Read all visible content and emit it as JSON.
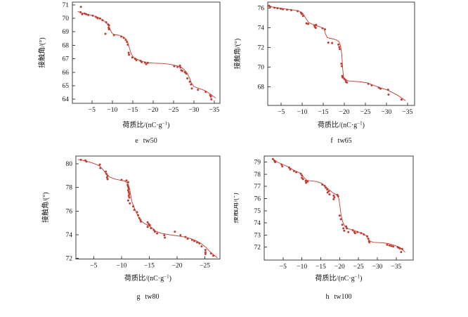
{
  "figure": {
    "ylabel": "接触角/(°)",
    "xlabel": "荷质比/(nC·g⁻¹)",
    "colors": {
      "accent": "#c23b30",
      "frame": "#3f3f3f",
      "text": "#141414"
    }
  },
  "chart_data": [
    {
      "type": "scatter",
      "caption": "e tw50",
      "xlabel": "荷质比/(nC·g⁻¹)",
      "ylabel": "接触角/(°)",
      "xlim": [
        -0.2,
        -36.4
      ],
      "ylim": [
        63.7,
        71.2
      ],
      "x_ticks": [
        -5,
        -10,
        -15,
        -20,
        -25,
        -30,
        -35
      ],
      "y_ticks": [
        64,
        65,
        66,
        67,
        68,
        69,
        70,
        71
      ],
      "points": [
        [
          -2.3,
          70.85
        ],
        [
          -2.2,
          70.45
        ],
        [
          -2.6,
          70.3
        ],
        [
          -3.2,
          70.35
        ],
        [
          -3.6,
          70.3
        ],
        [
          -4.1,
          70.25
        ],
        [
          -5.2,
          70.2
        ],
        [
          -6.0,
          70.1
        ],
        [
          -6.4,
          70.0
        ],
        [
          -7.0,
          69.98
        ],
        [
          -7.6,
          69.85
        ],
        [
          -8.5,
          69.7
        ],
        [
          -9.0,
          69.55
        ],
        [
          -9.2,
          69.48
        ],
        [
          -9.1,
          69.3
        ],
        [
          -9.2,
          69.18
        ],
        [
          -8.3,
          68.85
        ],
        [
          -10.4,
          68.75
        ],
        [
          -12.2,
          68.65
        ],
        [
          -12.8,
          68.55
        ],
        [
          -13.3,
          68.4
        ],
        [
          -13.6,
          68.25
        ],
        [
          -13.8,
          68.05
        ],
        [
          -14.0,
          67.45
        ],
        [
          -14.1,
          67.3
        ],
        [
          -14.9,
          67.1
        ],
        [
          -15.6,
          67.0
        ],
        [
          -15.9,
          66.9
        ],
        [
          -16.9,
          66.85
        ],
        [
          -17.2,
          66.75
        ],
        [
          -18.0,
          66.72
        ],
        [
          -18.3,
          66.6
        ],
        [
          -18.7,
          66.7
        ],
        [
          -25.2,
          66.45
        ],
        [
          -26.0,
          66.4
        ],
        [
          -26.6,
          66.5
        ],
        [
          -26.7,
          66.35
        ],
        [
          -26.9,
          66.15
        ],
        [
          -27.2,
          66.1
        ],
        [
          -27.8,
          66.0
        ],
        [
          -28.1,
          65.9
        ],
        [
          -28.4,
          65.55
        ],
        [
          -29.0,
          65.3
        ],
        [
          -29.3,
          65.1
        ],
        [
          -29.5,
          64.8
        ],
        [
          -31.0,
          64.7
        ],
        [
          -32.9,
          64.55
        ],
        [
          -34.0,
          64.3
        ],
        [
          -34.2,
          64.2
        ],
        [
          -34.3,
          64.0
        ]
      ],
      "trend": [
        [
          -1.6,
          70.5
        ],
        [
          -3.0,
          70.35
        ],
        [
          -5.0,
          70.22
        ],
        [
          -7.0,
          70.02
        ],
        [
          -8.0,
          69.8
        ],
        [
          -8.7,
          69.6
        ],
        [
          -9.3,
          69.3
        ],
        [
          -9.8,
          68.95
        ],
        [
          -10.3,
          68.8
        ],
        [
          -11.5,
          68.75
        ],
        [
          -12.5,
          68.65
        ],
        [
          -13.2,
          68.5
        ],
        [
          -13.8,
          68.2
        ],
        [
          -14.2,
          67.8
        ],
        [
          -14.6,
          67.4
        ],
        [
          -15.2,
          67.1
        ],
        [
          -16.2,
          66.95
        ],
        [
          -17.5,
          66.8
        ],
        [
          -18.5,
          66.72
        ],
        [
          -20.0,
          66.68
        ],
        [
          -22.0,
          66.66
        ],
        [
          -24.0,
          66.6
        ],
        [
          -25.5,
          66.5
        ],
        [
          -26.8,
          66.4
        ],
        [
          -27.6,
          66.2
        ],
        [
          -28.3,
          65.95
        ],
        [
          -28.9,
          65.6
        ],
        [
          -29.4,
          65.2
        ],
        [
          -30.0,
          64.95
        ],
        [
          -30.8,
          64.85
        ],
        [
          -31.8,
          64.75
        ],
        [
          -33.0,
          64.6
        ],
        [
          -34.2,
          64.35
        ],
        [
          -35.3,
          64.1
        ]
      ]
    },
    {
      "type": "scatter",
      "caption": "f tw65",
      "xlabel": "荷质比/(nC·g⁻¹)",
      "ylabel": "接触角/(°)",
      "xlim": [
        -1.8,
        -36.7
      ],
      "ylim": [
        66.1,
        76.62
      ],
      "x_ticks": [
        -5,
        -10,
        -15,
        -20,
        -25,
        -30,
        -35
      ],
      "y_ticks": [
        68,
        70,
        72,
        74,
        76
      ],
      "points": [
        [
          -2.1,
          76.25
        ],
        [
          -2.4,
          76.15
        ],
        [
          -3.4,
          76.05
        ],
        [
          -4.1,
          76.0
        ],
        [
          -4.9,
          75.95
        ],
        [
          -5.4,
          75.9
        ],
        [
          -6.4,
          75.85
        ],
        [
          -7.4,
          75.8
        ],
        [
          -8.9,
          75.7
        ],
        [
          -9.7,
          75.55
        ],
        [
          -9.9,
          75.4
        ],
        [
          -10.2,
          75.2
        ],
        [
          -11.0,
          74.45
        ],
        [
          -11.4,
          74.4
        ],
        [
          -12.9,
          74.25
        ],
        [
          -13.0,
          74.1
        ],
        [
          -13.3,
          74.3
        ],
        [
          -13.2,
          74.0
        ],
        [
          -14.8,
          73.95
        ],
        [
          -15.4,
          73.85
        ],
        [
          -16.2,
          72.5
        ],
        [
          -17.1,
          72.45
        ],
        [
          -18.6,
          72.3
        ],
        [
          -18.8,
          72.05
        ],
        [
          -18.9,
          71.85
        ],
        [
          -19.3,
          70.35
        ],
        [
          -19.4,
          70.1
        ],
        [
          -19.5,
          69.1
        ],
        [
          -19.6,
          68.95
        ],
        [
          -20.0,
          68.8
        ],
        [
          -20.3,
          68.7
        ],
        [
          -20.4,
          68.5
        ],
        [
          -20.6,
          68.45
        ],
        [
          -25.7,
          68.3
        ],
        [
          -26.5,
          68.15
        ],
        [
          -28.2,
          67.9
        ],
        [
          -28.6,
          67.8
        ],
        [
          -30.4,
          67.7
        ],
        [
          -30.5,
          67.2
        ],
        [
          -33.6,
          66.7
        ]
      ],
      "trend": [
        [
          -1.8,
          76.2
        ],
        [
          -4.0,
          76.05
        ],
        [
          -6.0,
          75.92
        ],
        [
          -8.0,
          75.82
        ],
        [
          -9.3,
          75.7
        ],
        [
          -10.2,
          75.45
        ],
        [
          -10.8,
          75.0
        ],
        [
          -11.5,
          74.55
        ],
        [
          -12.5,
          74.35
        ],
        [
          -13.5,
          74.2
        ],
        [
          -14.5,
          74.05
        ],
        [
          -15.2,
          73.9
        ],
        [
          -15.5,
          73.4
        ],
        [
          -16.0,
          73.0
        ],
        [
          -17.0,
          72.9
        ],
        [
          -18.0,
          72.8
        ],
        [
          -18.7,
          72.6
        ],
        [
          -19.1,
          72.2
        ],
        [
          -19.4,
          71.3
        ],
        [
          -19.6,
          69.9
        ],
        [
          -19.8,
          69.0
        ],
        [
          -20.3,
          68.7
        ],
        [
          -21.0,
          68.6
        ],
        [
          -22.5,
          68.55
        ],
        [
          -24.0,
          68.5
        ],
        [
          -25.5,
          68.4
        ],
        [
          -27.0,
          68.15
        ],
        [
          -28.5,
          67.9
        ],
        [
          -30.0,
          67.7
        ],
        [
          -31.5,
          67.4
        ],
        [
          -33.0,
          67.05
        ],
        [
          -34.5,
          66.6
        ]
      ]
    },
    {
      "type": "scatter",
      "caption": "g tw80",
      "xlabel": "荷质比/(nC·g⁻¹)",
      "ylabel": "接触角/(°)",
      "xlim": [
        -1.8,
        -27.7
      ],
      "ylim": [
        71.94,
        80.67
      ],
      "x_ticks": [
        -5,
        -10,
        -15,
        -20,
        -25
      ],
      "y_ticks": [
        72,
        74,
        76,
        78,
        80
      ],
      "points": [
        [
          -2.7,
          80.35
        ],
        [
          -3.5,
          80.3
        ],
        [
          -3.7,
          80.2
        ],
        [
          -6.1,
          79.95
        ],
        [
          -6.2,
          79.65
        ],
        [
          -7.2,
          79.35
        ],
        [
          -7.3,
          79.15
        ],
        [
          -7.5,
          79.0
        ],
        [
          -7.4,
          78.85
        ],
        [
          -7.5,
          78.7
        ],
        [
          -10.0,
          78.65
        ],
        [
          -10.9,
          78.6
        ],
        [
          -11.2,
          78.45
        ],
        [
          -11.1,
          78.2
        ],
        [
          -11.2,
          78.05
        ],
        [
          -11.3,
          77.9
        ],
        [
          -11.2,
          77.75
        ],
        [
          -11.3,
          77.6
        ],
        [
          -11.4,
          77.45
        ],
        [
          -11.3,
          77.3
        ],
        [
          -11.4,
          77.15
        ],
        [
          -11.2,
          76.9
        ],
        [
          -11.5,
          76.65
        ],
        [
          -12.1,
          76.4
        ],
        [
          -12.3,
          76.1
        ],
        [
          -12.8,
          75.9
        ],
        [
          -13.0,
          75.65
        ],
        [
          -13.2,
          75.4
        ],
        [
          -13.4,
          75.25
        ],
        [
          -13.5,
          75.1
        ],
        [
          -14.7,
          75.05
        ],
        [
          -14.9,
          74.9
        ],
        [
          -15.1,
          74.8
        ],
        [
          -14.7,
          74.65
        ],
        [
          -15.3,
          74.55
        ],
        [
          -15.8,
          74.4
        ],
        [
          -16.0,
          74.25
        ],
        [
          -16.4,
          74.1
        ],
        [
          -17.7,
          73.95
        ],
        [
          -17.8,
          73.75
        ],
        [
          -19.6,
          74.25
        ],
        [
          -20.6,
          73.95
        ],
        [
          -21.5,
          73.8
        ],
        [
          -21.9,
          73.65
        ],
        [
          -22.7,
          73.55
        ],
        [
          -23.1,
          73.45
        ],
        [
          -23.6,
          73.35
        ],
        [
          -24.0,
          73.25
        ],
        [
          -24.4,
          73.0
        ],
        [
          -25.1,
          72.7
        ],
        [
          -25.1,
          72.5
        ],
        [
          -25.1,
          72.35
        ],
        [
          -26.1,
          72.4
        ],
        [
          -26.5,
          72.2
        ]
      ],
      "trend": [
        [
          -2.2,
          80.38
        ],
        [
          -3.6,
          80.25
        ],
        [
          -5.0,
          80.05
        ],
        [
          -6.0,
          79.85
        ],
        [
          -6.6,
          79.55
        ],
        [
          -7.2,
          79.2
        ],
        [
          -7.8,
          78.9
        ],
        [
          -8.8,
          78.72
        ],
        [
          -9.8,
          78.62
        ],
        [
          -10.6,
          78.55
        ],
        [
          -11.2,
          78.3
        ],
        [
          -11.5,
          77.8
        ],
        [
          -11.7,
          77.2
        ],
        [
          -11.9,
          76.75
        ],
        [
          -12.2,
          76.4
        ],
        [
          -12.6,
          75.95
        ],
        [
          -13.0,
          75.55
        ],
        [
          -13.4,
          75.2
        ],
        [
          -14.1,
          74.95
        ],
        [
          -15.0,
          74.72
        ],
        [
          -15.7,
          74.5
        ],
        [
          -16.1,
          74.3
        ],
        [
          -17.2,
          74.1
        ],
        [
          -18.5,
          74.0
        ],
        [
          -20.0,
          73.9
        ],
        [
          -21.3,
          73.8
        ],
        [
          -22.3,
          73.68
        ],
        [
          -23.3,
          73.5
        ],
        [
          -24.3,
          73.25
        ],
        [
          -25.2,
          72.9
        ],
        [
          -25.8,
          72.6
        ],
        [
          -26.4,
          72.35
        ],
        [
          -27.2,
          72.05
        ]
      ]
    },
    {
      "type": "scatter",
      "caption": "h tw100",
      "xlabel": "荷质比/(nC·g⁻¹)",
      "ylabel": "接触角/(°)",
      "xlim": [
        0.0,
        -39.5
      ],
      "ylim": [
        70.94,
        79.5
      ],
      "x_ticks": [
        -5,
        -10,
        -15,
        -20,
        -25,
        -30,
        -35
      ],
      "y_ticks": [
        72,
        73,
        74,
        75,
        76,
        77,
        78,
        79
      ],
      "points": [
        [
          -2.3,
          79.25
        ],
        [
          -2.7,
          79.1
        ],
        [
          -2.9,
          79.0
        ],
        [
          -4.6,
          78.8
        ],
        [
          -4.8,
          78.65
        ],
        [
          -6.6,
          78.55
        ],
        [
          -6.9,
          78.4
        ],
        [
          -7.9,
          78.27
        ],
        [
          -8.5,
          78.17
        ],
        [
          -9.7,
          78.05
        ],
        [
          -10.0,
          77.9
        ],
        [
          -10.0,
          77.7
        ],
        [
          -10.3,
          77.6
        ],
        [
          -11.0,
          77.45
        ],
        [
          -11.1,
          77.3
        ],
        [
          -11.5,
          77.4
        ],
        [
          -15.4,
          77.15
        ],
        [
          -16.0,
          77.05
        ],
        [
          -16.3,
          76.9
        ],
        [
          -16.7,
          76.75
        ],
        [
          -17.1,
          76.6
        ],
        [
          -16.8,
          76.5
        ],
        [
          -17.3,
          76.35
        ],
        [
          -18.4,
          76.25
        ],
        [
          -18.6,
          76.1
        ],
        [
          -18.4,
          75.95
        ],
        [
          -19.4,
          76.3
        ],
        [
          -19.6,
          76.2
        ],
        [
          -20.0,
          74.6
        ],
        [
          -20.3,
          74.3
        ],
        [
          -20.7,
          73.85
        ],
        [
          -21.0,
          73.55
        ],
        [
          -21.2,
          73.35
        ],
        [
          -21.7,
          73.7
        ],
        [
          -21.9,
          73.55
        ],
        [
          -22.3,
          73.25
        ],
        [
          -23.5,
          73.4
        ],
        [
          -23.9,
          73.25
        ],
        [
          -24.1,
          73.15
        ],
        [
          -24.7,
          73.25
        ],
        [
          -25.7,
          73.15
        ],
        [
          -26.4,
          73.05
        ],
        [
          -27.3,
          72.9
        ],
        [
          -27.6,
          72.7
        ],
        [
          -27.8,
          72.5
        ],
        [
          -27.9,
          72.4
        ],
        [
          -32.6,
          72.2
        ],
        [
          -33.2,
          72.15
        ],
        [
          -33.7,
          72.1
        ],
        [
          -34.2,
          72.05
        ],
        [
          -35.4,
          72.0
        ],
        [
          -35.7,
          71.95
        ],
        [
          -36.0,
          71.9
        ],
        [
          -36.3,
          71.6
        ],
        [
          -36.6,
          71.85
        ]
      ],
      "trend": [
        [
          -2.2,
          79.3
        ],
        [
          -3.5,
          79.0
        ],
        [
          -5.0,
          78.8
        ],
        [
          -6.5,
          78.6
        ],
        [
          -8.0,
          78.3
        ],
        [
          -9.5,
          78.1
        ],
        [
          -10.5,
          77.75
        ],
        [
          -11.3,
          77.5
        ],
        [
          -12.5,
          77.45
        ],
        [
          -14.0,
          77.4
        ],
        [
          -15.3,
          77.25
        ],
        [
          -16.3,
          77.0
        ],
        [
          -17.3,
          76.7
        ],
        [
          -18.3,
          76.45
        ],
        [
          -19.3,
          76.3
        ],
        [
          -19.8,
          76.0
        ],
        [
          -20.1,
          75.3
        ],
        [
          -20.4,
          74.6
        ],
        [
          -20.8,
          74.1
        ],
        [
          -21.3,
          73.75
        ],
        [
          -22.0,
          73.55
        ],
        [
          -23.0,
          73.45
        ],
        [
          -24.0,
          73.35
        ],
        [
          -25.0,
          73.25
        ],
        [
          -26.0,
          73.15
        ],
        [
          -27.0,
          72.95
        ],
        [
          -27.6,
          72.7
        ],
        [
          -28.0,
          72.5
        ],
        [
          -29.0,
          72.4
        ],
        [
          -31.0,
          72.37
        ],
        [
          -33.0,
          72.3
        ],
        [
          -34.5,
          72.15
        ],
        [
          -35.5,
          72.05
        ],
        [
          -36.5,
          71.85
        ],
        [
          -37.3,
          71.6
        ]
      ]
    }
  ]
}
